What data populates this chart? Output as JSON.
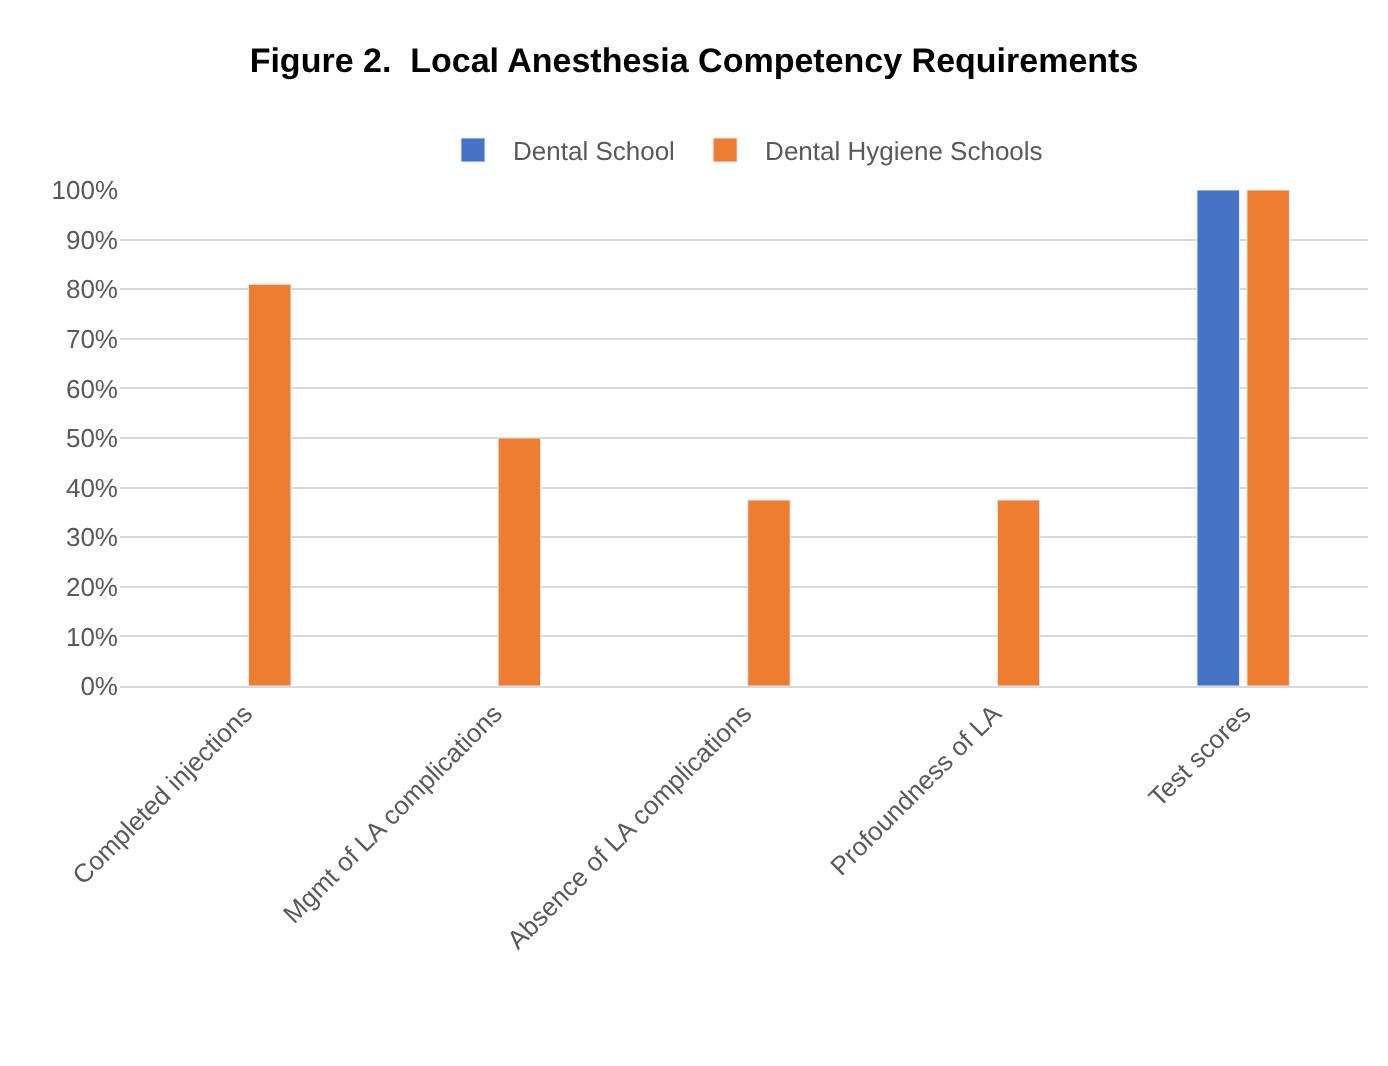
{
  "chart_data": {
    "type": "bar",
    "title": "Figure 2.  Local Anesthesia Competency Requirements",
    "categories": [
      "Completed injections",
      "Mgmt of LA complications",
      "Absence of LA complications",
      "Profoundness of LA",
      "Test scores"
    ],
    "series": [
      {
        "name": "Dental School",
        "color": "#4472c4",
        "values": [
          null,
          null,
          null,
          null,
          100
        ]
      },
      {
        "name": "Dental Hygiene Schools",
        "color": "#ed7d31",
        "values": [
          81,
          50,
          37.5,
          37.5,
          100
        ]
      }
    ],
    "ylim": [
      0,
      100
    ],
    "yticks": [
      {
        "value": 0,
        "label": "0%"
      },
      {
        "value": 10,
        "label": "10%"
      },
      {
        "value": 20,
        "label": "20%"
      },
      {
        "value": 30,
        "label": "30%"
      },
      {
        "value": 40,
        "label": "40%"
      },
      {
        "value": 50,
        "label": "50%"
      },
      {
        "value": 60,
        "label": "60%"
      },
      {
        "value": 70,
        "label": "70%"
      },
      {
        "value": 80,
        "label": "80%"
      },
      {
        "value": 90,
        "label": "90%"
      },
      {
        "value": 100,
        "label": "100%"
      }
    ],
    "grid": "y",
    "legend": "top"
  }
}
